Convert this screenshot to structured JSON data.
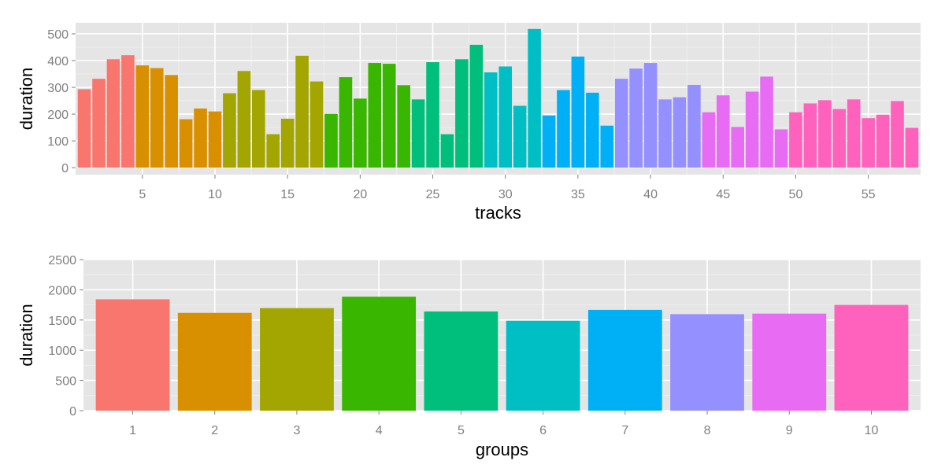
{
  "chart_data": [
    {
      "type": "bar",
      "xlabel": "tracks",
      "ylabel": "duration",
      "x": [
        1,
        2,
        3,
        4,
        5,
        6,
        7,
        8,
        9,
        10,
        11,
        12,
        13,
        14,
        15,
        16,
        17,
        18,
        19,
        20,
        21,
        22,
        23,
        24,
        25,
        26,
        27,
        28,
        29,
        30,
        31,
        32,
        33,
        34,
        35,
        36,
        37,
        38,
        39,
        40,
        41,
        42,
        43,
        44,
        45,
        46,
        47,
        48,
        49,
        50,
        51,
        52,
        53,
        54,
        55,
        56,
        57,
        58
      ],
      "values": [
        293,
        332,
        405,
        420,
        382,
        372,
        346,
        181,
        221,
        210,
        278,
        361,
        290,
        125,
        183,
        418,
        322,
        201,
        338,
        258,
        391,
        388,
        308,
        255,
        394,
        125,
        405,
        459,
        356,
        378,
        231,
        518,
        195,
        290,
        415,
        280,
        157,
        332,
        370,
        391,
        255,
        263,
        309,
        207,
        270,
        152,
        284,
        340,
        143,
        207,
        240,
        252,
        219,
        255,
        185,
        198,
        249,
        149
      ],
      "group": [
        1,
        1,
        1,
        1,
        2,
        2,
        2,
        2,
        2,
        2,
        3,
        3,
        3,
        3,
        3,
        3,
        3,
        4,
        4,
        4,
        4,
        4,
        4,
        5,
        5,
        5,
        5,
        5,
        6,
        6,
        6,
        6,
        7,
        7,
        7,
        7,
        7,
        8,
        8,
        8,
        8,
        8,
        8,
        9,
        9,
        9,
        9,
        9,
        9,
        10,
        10,
        10,
        10,
        10,
        10,
        10,
        10,
        10
      ],
      "xticks": [
        5,
        10,
        15,
        20,
        25,
        30,
        35,
        40,
        45,
        50,
        55
      ],
      "yticks": [
        0,
        100,
        200,
        300,
        400,
        500
      ],
      "xlim": [
        0.4,
        58.6
      ],
      "ylim": [
        -26,
        541
      ],
      "grid": true
    },
    {
      "type": "bar",
      "xlabel": "groups",
      "ylabel": "duration",
      "categories": [
        "1",
        "2",
        "3",
        "4",
        "5",
        "6",
        "7",
        "8",
        "9",
        "10"
      ],
      "values": [
        1843,
        1618,
        1697,
        1886,
        1642,
        1488,
        1668,
        1597,
        1606,
        1750
      ],
      "yticks": [
        0,
        500,
        1000,
        1500,
        2000,
        2500
      ],
      "ylim": [
        0,
        2500
      ],
      "grid": true
    }
  ],
  "colors": {
    "panel_bg": "#e5e5e5",
    "grid_major": "#ffffff",
    "grid_minor": "#f2f2f2",
    "tick_text": "#7f7f7f",
    "tick_mark": "#7f7f7f",
    "groups": [
      "#f8766d",
      "#d89000",
      "#a3a500",
      "#39b600",
      "#00bf7d",
      "#00bfc4",
      "#00b0f6",
      "#9590ff",
      "#e76bf3",
      "#ff62bc"
    ]
  }
}
